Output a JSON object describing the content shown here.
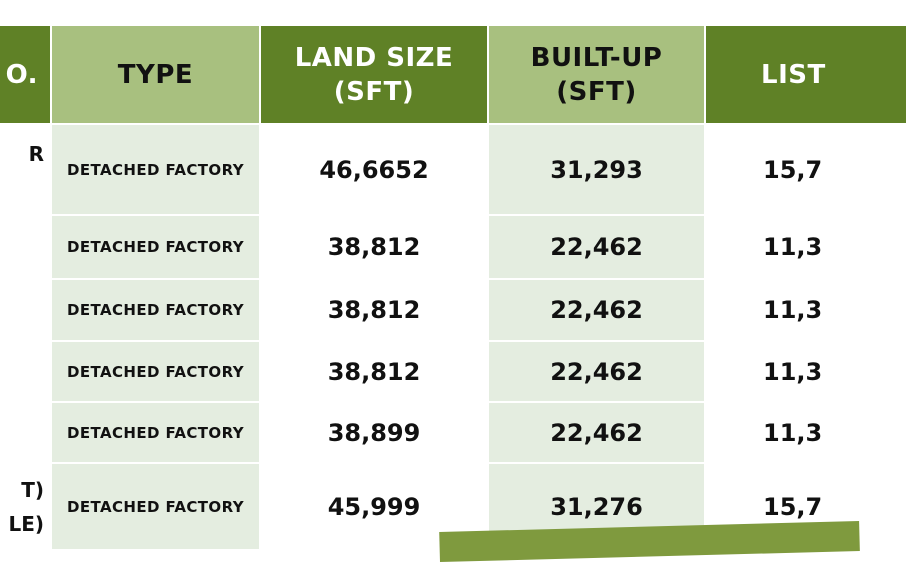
{
  "table": {
    "headers": {
      "no": "O.",
      "type": "TYPE",
      "land_size": [
        "LAND SIZE",
        "(SFT)"
      ],
      "built_up": [
        "BUILT-UP",
        "(SFT)"
      ],
      "list": "LIST"
    },
    "rows": [
      {
        "no": "R",
        "type": "DETACHED FACTORY",
        "land_size": "46,6652",
        "built_up": "31,293",
        "list": "15,7"
      },
      {
        "no": "",
        "type": "DETACHED FACTORY",
        "land_size": "38,812",
        "built_up": "22,462",
        "list": "11,3"
      },
      {
        "no": "",
        "type": "DETACHED FACTORY",
        "land_size": "38,812",
        "built_up": "22,462",
        "list": "11,3"
      },
      {
        "no": "",
        "type": "DETACHED FACTORY",
        "land_size": "38,812",
        "built_up": "22,462",
        "list": "11,3"
      },
      {
        "no": "",
        "type": "DETACHED FACTORY",
        "land_size": "38,899",
        "built_up": "22,462",
        "list": "11,3"
      },
      {
        "no": [
          "T)",
          "LE)"
        ],
        "type": "DETACHED FACTORY",
        "land_size": "45,999",
        "built_up": "31,276",
        "list": "15,7"
      }
    ]
  },
  "colors": {
    "header_dark": "#5f8126",
    "header_light": "#a8c07f",
    "row_shade": "#e4ede0",
    "accent_stripe": "#7f9a3e"
  }
}
